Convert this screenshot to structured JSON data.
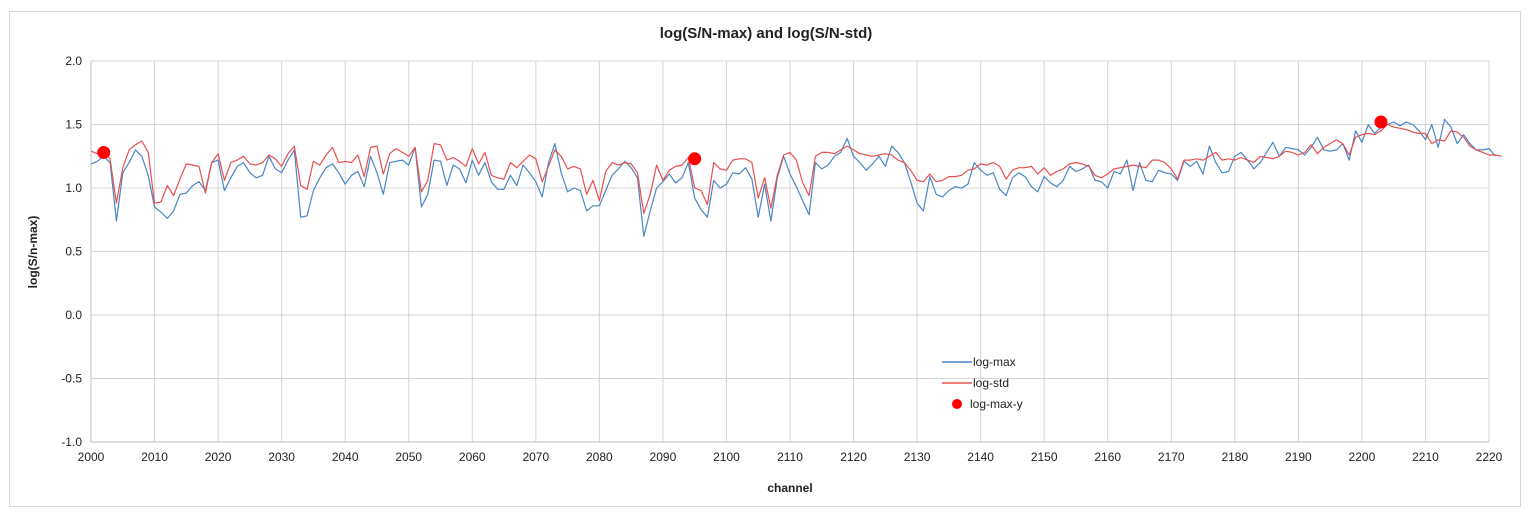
{
  "chart_data": {
    "type": "line",
    "title": "log(S/N-max) and log(S/N-std)",
    "xlabel": "channel",
    "ylabel": "log(S/n-max)",
    "xlim": [
      2000,
      2220
    ],
    "ylim": [
      -1.0,
      2.0
    ],
    "x_ticks": [
      "2000",
      "2010",
      "2020",
      "2030",
      "2040",
      "2050",
      "2060",
      "2070",
      "2080",
      "2090",
      "2100",
      "2110",
      "2120",
      "2130",
      "2140",
      "2150",
      "2160",
      "2170",
      "2180",
      "2190",
      "2200",
      "2210",
      "2220"
    ],
    "y_ticks": [
      "2.0",
      "1.5",
      "1.0",
      "0.5",
      "0.0",
      "-0.5",
      "-1.0"
    ],
    "grid": true,
    "legend": "center-right",
    "series": [
      {
        "name": "log-max",
        "color": "#4a86c5",
        "x_start": 2000,
        "x_step": 1,
        "values": [
          1.19,
          1.21,
          1.25,
          1.2,
          0.74,
          1.12,
          1.2,
          1.3,
          1.25,
          1.1,
          0.85,
          0.81,
          0.76,
          0.82,
          0.95,
          0.96,
          1.02,
          1.05,
          0.98,
          1.2,
          1.22,
          0.98,
          1.08,
          1.17,
          1.2,
          1.12,
          1.08,
          1.1,
          1.25,
          1.15,
          1.12,
          1.22,
          1.3,
          0.77,
          0.78,
          0.98,
          1.08,
          1.16,
          1.19,
          1.12,
          1.03,
          1.1,
          1.13,
          1.01,
          1.25,
          1.12,
          0.95,
          1.2,
          1.21,
          1.22,
          1.18,
          1.32,
          0.85,
          0.95,
          1.22,
          1.21,
          1.02,
          1.18,
          1.15,
          1.04,
          1.22,
          1.1,
          1.2,
          1.05,
          0.99,
          0.99,
          1.1,
          1.02,
          1.18,
          1.12,
          1.05,
          0.93,
          1.2,
          1.35,
          1.12,
          0.97,
          1.0,
          0.98,
          0.82,
          0.86,
          0.86,
          0.98,
          1.1,
          1.15,
          1.21,
          1.16,
          1.08,
          0.62,
          0.82,
          1.0,
          1.05,
          1.11,
          1.04,
          1.08,
          1.2,
          0.92,
          0.83,
          0.77,
          1.06,
          1.0,
          1.03,
          1.12,
          1.11,
          1.16,
          1.07,
          0.77,
          1.03,
          0.74,
          1.08,
          1.25,
          1.11,
          1.01,
          0.9,
          0.79,
          1.2,
          1.15,
          1.18,
          1.25,
          1.28,
          1.39,
          1.25,
          1.2,
          1.14,
          1.19,
          1.25,
          1.17,
          1.33,
          1.28,
          1.2,
          1.05,
          0.88,
          0.82,
          1.09,
          0.95,
          0.93,
          0.98,
          1.01,
          1.0,
          1.03,
          1.2,
          1.14,
          1.1,
          1.12,
          0.99,
          0.94,
          1.08,
          1.12,
          1.09,
          1.01,
          0.97,
          1.09,
          1.04,
          1.01,
          1.06,
          1.17,
          1.13,
          1.15,
          1.18,
          1.06,
          1.05,
          1.0,
          1.13,
          1.11,
          1.22,
          0.98,
          1.2,
          1.06,
          1.05,
          1.14,
          1.12,
          1.11,
          1.06,
          1.21,
          1.17,
          1.21,
          1.11,
          1.33,
          1.2,
          1.12,
          1.13,
          1.25,
          1.28,
          1.22,
          1.15,
          1.2,
          1.28,
          1.36,
          1.25,
          1.32,
          1.31,
          1.3,
          1.26,
          1.32,
          1.4,
          1.3,
          1.29,
          1.3,
          1.35,
          1.22,
          1.45,
          1.36,
          1.5,
          1.43,
          1.48,
          1.5,
          1.52,
          1.49,
          1.52,
          1.5,
          1.45,
          1.38,
          1.5,
          1.32,
          1.54,
          1.48,
          1.35,
          1.42,
          1.35,
          1.3,
          1.3,
          1.31,
          1.25
        ]
      },
      {
        "name": "log-std",
        "color": "#e8504f",
        "x_start": 2000,
        "x_step": 1,
        "values": [
          1.29,
          1.27,
          1.28,
          1.23,
          0.88,
          1.16,
          1.3,
          1.34,
          1.37,
          1.28,
          0.88,
          0.89,
          1.02,
          0.94,
          1.07,
          1.19,
          1.18,
          1.17,
          0.96,
          1.2,
          1.27,
          1.06,
          1.2,
          1.22,
          1.25,
          1.19,
          1.18,
          1.2,
          1.26,
          1.23,
          1.17,
          1.27,
          1.33,
          1.02,
          0.99,
          1.21,
          1.18,
          1.26,
          1.32,
          1.2,
          1.21,
          1.2,
          1.26,
          1.09,
          1.32,
          1.33,
          1.11,
          1.27,
          1.31,
          1.28,
          1.25,
          1.32,
          0.97,
          1.06,
          1.35,
          1.34,
          1.22,
          1.24,
          1.21,
          1.17,
          1.31,
          1.19,
          1.28,
          1.1,
          1.08,
          1.07,
          1.2,
          1.16,
          1.21,
          1.26,
          1.23,
          1.05,
          1.17,
          1.3,
          1.25,
          1.15,
          1.17,
          1.15,
          0.95,
          1.06,
          0.9,
          1.13,
          1.2,
          1.18,
          1.2,
          1.19,
          1.12,
          0.8,
          0.95,
          1.18,
          1.06,
          1.14,
          1.17,
          1.18,
          1.24,
          1.0,
          0.98,
          0.87,
          1.2,
          1.15,
          1.14,
          1.22,
          1.23,
          1.23,
          1.2,
          0.92,
          1.08,
          0.84,
          1.1,
          1.26,
          1.28,
          1.22,
          1.04,
          0.94,
          1.25,
          1.28,
          1.28,
          1.27,
          1.3,
          1.33,
          1.3,
          1.27,
          1.26,
          1.25,
          1.26,
          1.27,
          1.26,
          1.22,
          1.2,
          1.14,
          1.06,
          1.05,
          1.11,
          1.05,
          1.06,
          1.09,
          1.09,
          1.1,
          1.14,
          1.15,
          1.19,
          1.18,
          1.2,
          1.17,
          1.07,
          1.14,
          1.16,
          1.16,
          1.17,
          1.11,
          1.16,
          1.1,
          1.13,
          1.15,
          1.19,
          1.2,
          1.19,
          1.17,
          1.1,
          1.08,
          1.11,
          1.15,
          1.16,
          1.17,
          1.18,
          1.17,
          1.16,
          1.22,
          1.22,
          1.2,
          1.15,
          1.07,
          1.22,
          1.22,
          1.23,
          1.22,
          1.25,
          1.28,
          1.22,
          1.23,
          1.22,
          1.24,
          1.22,
          1.2,
          1.25,
          1.24,
          1.23,
          1.25,
          1.29,
          1.28,
          1.26,
          1.28,
          1.34,
          1.27,
          1.32,
          1.35,
          1.38,
          1.35,
          1.26,
          1.4,
          1.42,
          1.43,
          1.42,
          1.45,
          1.5,
          1.48,
          1.47,
          1.46,
          1.44,
          1.43,
          1.43,
          1.35,
          1.38,
          1.37,
          1.45,
          1.44,
          1.4,
          1.33,
          1.3,
          1.28,
          1.26,
          1.26,
          1.25
        ]
      },
      {
        "name": "log-max-y",
        "color": "#ff0000",
        "type": "scatter",
        "x": [
          2002,
          2095,
          2203
        ],
        "values": [
          1.28,
          1.23,
          1.52
        ]
      }
    ]
  }
}
